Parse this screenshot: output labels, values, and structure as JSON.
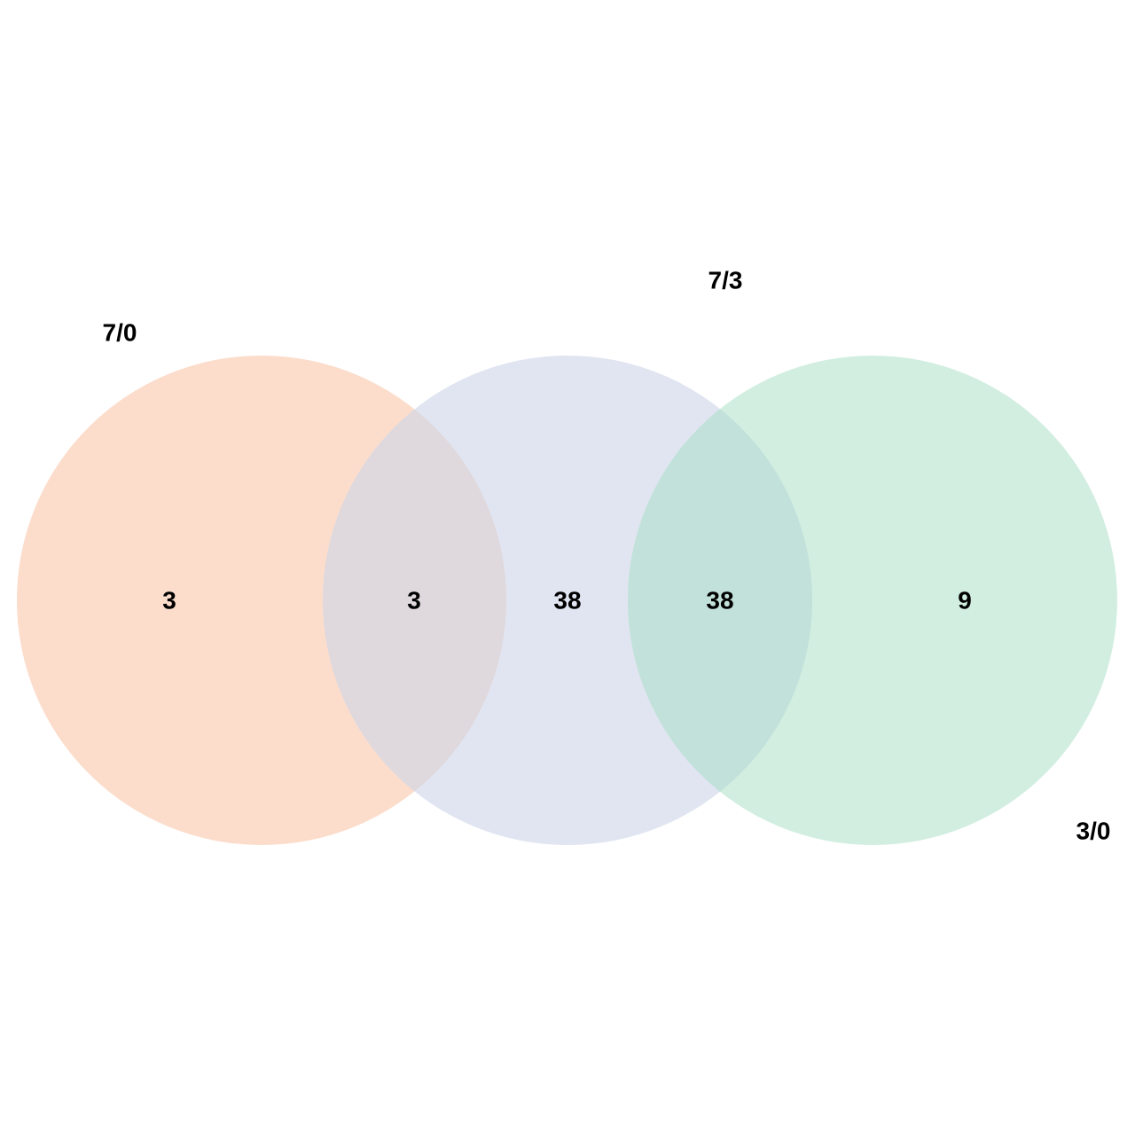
{
  "diagram": {
    "type": "venn",
    "sets": [
      {
        "label": "7/0",
        "color": "#fcddcc"
      },
      {
        "label": "7/3",
        "color": "#e0e5f1"
      },
      {
        "label": "3/0",
        "color": "#d2eee1"
      }
    ],
    "overlap_colors": {
      "set1_set2": "#dfd8dc",
      "set2_set3": "#c2e1da"
    },
    "region_counts": {
      "only_set1": "3",
      "set1_and_set2": "3",
      "only_set2": "38",
      "set2_and_set3": "38",
      "only_set3": "9"
    }
  }
}
